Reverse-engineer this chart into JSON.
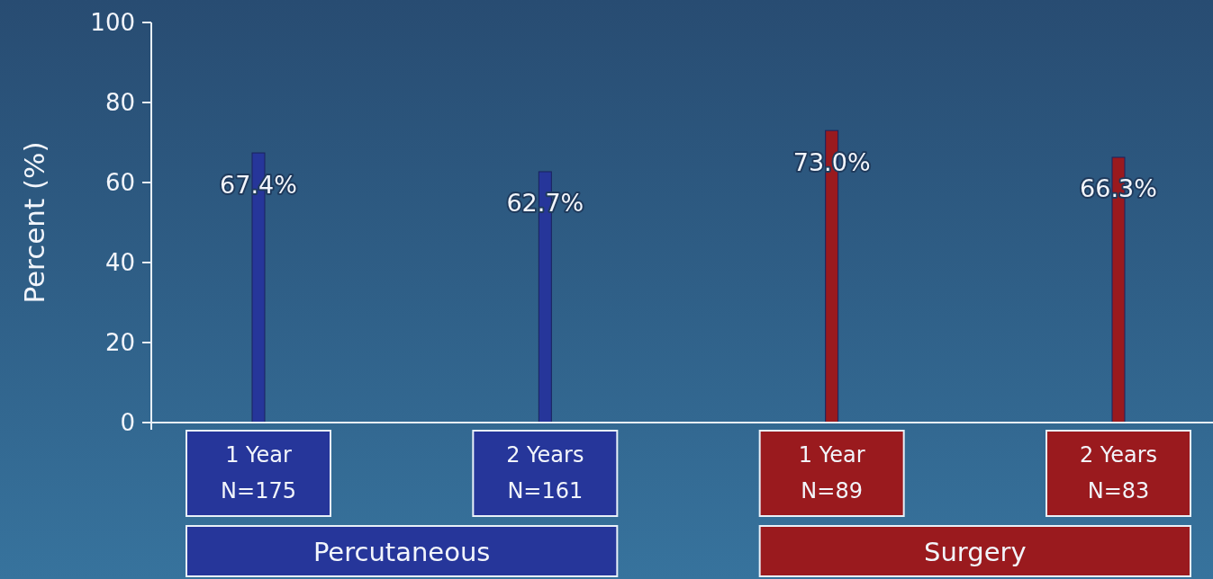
{
  "chart_data": {
    "type": "bar",
    "ylabel": "Percent (%)",
    "categories": [
      "1 Year\nN=175",
      "2 Years\nN=161",
      "1 Year\nN=89",
      "2 Years\nN=83"
    ],
    "series": [
      {
        "name": "Percutaneous",
        "color": "#26369a",
        "values": [
          67.4,
          62.7,
          null,
          null
        ],
        "value_labels": [
          "67.4%",
          "62.7%",
          null,
          null
        ]
      },
      {
        "name": "Surgery",
        "color": "#9a1a1e",
        "values": [
          null,
          null,
          73.0,
          66.3
        ],
        "value_labels": [
          null,
          null,
          "73.0%",
          "66.3%"
        ]
      }
    ],
    "ylim": [
      0,
      100
    ],
    "yticks": [
      0,
      20,
      40,
      60,
      80,
      100
    ],
    "legend": "bottom"
  }
}
